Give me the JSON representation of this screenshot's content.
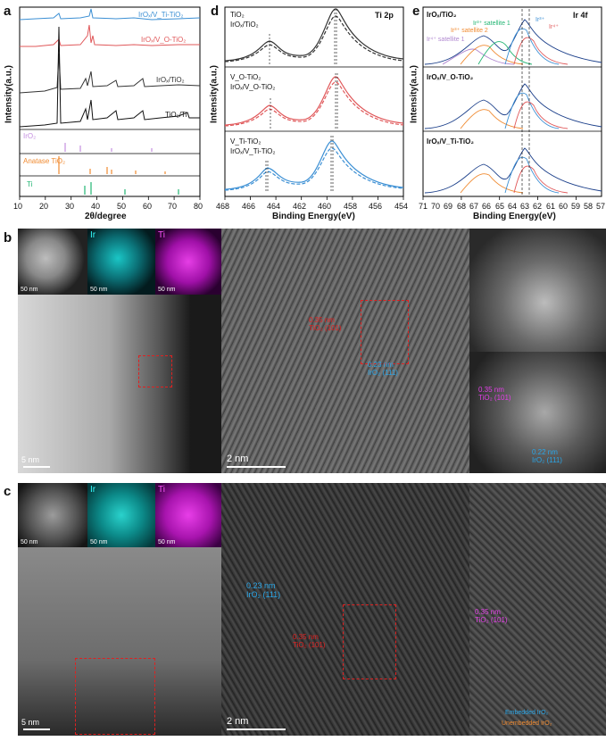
{
  "panels": {
    "a": {
      "letter": "a",
      "ylabel": "Intensity(a.u.)",
      "xlabel": "2θ/degree",
      "xticks": [
        "10",
        "20",
        "30",
        "40",
        "50",
        "60",
        "70",
        "80"
      ],
      "traces": [
        {
          "label": "IrOₓ/V_Ti-TiO₂",
          "color": "#3b8fd4"
        },
        {
          "label": "IrOₓ/V_O-TiO₂",
          "color": "#e0585a"
        },
        {
          "label": "IrOₓ/TiO₂",
          "color": "#333333"
        },
        {
          "label": "TiO₂/Ti",
          "color": "#111111"
        }
      ],
      "refs": [
        {
          "label": "IrO₂",
          "color": "#c58ee0"
        },
        {
          "label": "Anatase TiO₂",
          "color": "#f08a30"
        },
        {
          "label": "Ti",
          "color": "#22b573"
        }
      ]
    },
    "d": {
      "letter": "d",
      "title": "Ti 2p",
      "ylabel": "Intensity(a.u.)",
      "xlabel": "Binding Energy(eV)",
      "xticks": [
        "468",
        "466",
        "464",
        "462",
        "460",
        "458",
        "456",
        "454"
      ],
      "subpanels": [
        {
          "solid": "TiO₂",
          "dashed": "IrOₓ/TiO₂",
          "color": "#333333"
        },
        {
          "solid": "V_O-TiO₂",
          "dashed": "IrOₓ/V_O-TiO₂",
          "color": "#e0585a"
        },
        {
          "solid": "V_Ti-TiO₂",
          "dashed": "IrOₓ/V_Ti-TiO₂",
          "color": "#3b8fd4"
        }
      ]
    },
    "e": {
      "letter": "e",
      "title": "Ir 4f",
      "ylabel": "Intensity(a.u.)",
      "xlabel": "Binding Energy(eV)",
      "xticks": [
        "71",
        "70",
        "69",
        "68",
        "67",
        "66",
        "65",
        "64",
        "63",
        "62",
        "61",
        "60",
        "59",
        "58",
        "57"
      ],
      "subpanels": [
        {
          "label": "IrOₓ/TiO₂"
        },
        {
          "label": "IrOₓ/V_O-TiO₂"
        },
        {
          "label": "IrOₓ/V_Ti-TiO₂"
        }
      ],
      "annotations": [
        "Ir³⁺ satellite 1",
        "Ir³⁺ satellite 2",
        "Ir⁴⁺ satellite 1",
        "Ir⁴⁺",
        "Ir³⁺"
      ]
    },
    "b": {
      "letter": "b",
      "eds_labels": [
        "Ir",
        "Ti"
      ],
      "eds_scales": [
        "50 nm",
        "50 nm",
        "50 nm"
      ],
      "main_scale": "5 nm",
      "zoom_scale": "2 nm",
      "annot_tio2": "0.35 nm\nTiO₂ (101)",
      "annot_iro2": "0.23 nm\nIrO₂ (111)",
      "annot_tio2_b": "0.35 nm\nTiO₂ (101)",
      "annot_iro2_b": "0.22 nm\nIrO₂ (111)"
    },
    "c": {
      "letter": "c",
      "eds_labels": [
        "Ir",
        "Ti"
      ],
      "eds_scales": [
        "50 nm",
        "50 nm",
        "50 nm"
      ],
      "main_scale": "5 nm",
      "zoom_scale": "2 nm",
      "annot_iro2": "0.23 nm\nIrO₂ (111)",
      "annot_tio2": "0.35 nm\nTiO₂ (101)",
      "annot_tio2_b": "0.35 nm\nTiO₂ (101)",
      "legend_embedded": "Embedded IrO₂",
      "legend_unembedded": "Unembedded IrO₂"
    }
  }
}
